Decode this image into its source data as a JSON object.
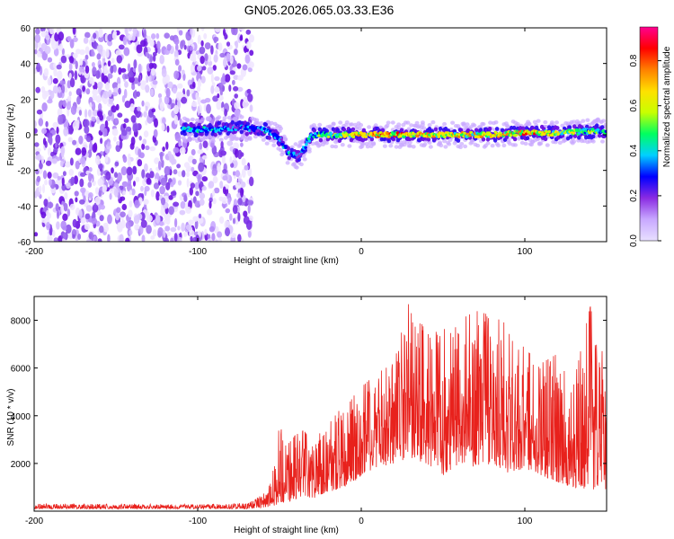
{
  "figure": {
    "title": "GN05.2026.065.03.33.E36"
  },
  "chart_data": [
    {
      "type": "heatmap",
      "title": "",
      "xlabel": "Height of straight line (km)",
      "ylabel": "Frequency (Hz)",
      "xlim": [
        -200,
        150
      ],
      "ylim": [
        -60,
        60
      ],
      "x_ticks": [
        -200,
        -100,
        0,
        100
      ],
      "y_ticks": [
        -60,
        -40,
        -20,
        0,
        20,
        40,
        60
      ],
      "x_tick_labels": [
        "-200",
        "-100",
        "0",
        "100"
      ],
      "y_tick_labels": [
        "-60",
        "-40",
        "-20",
        "0",
        "20",
        "40",
        "60"
      ],
      "colorbar": {
        "label": "Normalized spectral amplitude",
        "range": [
          0,
          0.95
        ],
        "ticks": [
          0,
          0.2,
          0.4,
          0.6,
          0.8
        ],
        "tick_labels": [
          "0.0",
          "0.2",
          "0.4",
          "0.6",
          "0.8"
        ],
        "colors": [
          "#e8e0ff",
          "#c8a8ff",
          "#8a2be2",
          "#0000ff",
          "#00d0ff",
          "#00ff60",
          "#c8ff00",
          "#ffe000",
          "#ff8000",
          "#ff0000",
          "#ff0090"
        ]
      },
      "noise_region": {
        "x": [
          -200,
          -67
        ],
        "freq": [
          -60,
          60
        ],
        "amplitude_range": [
          0,
          0.25
        ]
      },
      "signal_ridge": [
        {
          "x": -110,
          "freq": 3,
          "amp": 0.45
        },
        {
          "x": -90,
          "freq": 3,
          "amp": 0.4
        },
        {
          "x": -75,
          "freq": 4,
          "amp": 0.35
        },
        {
          "x": -60,
          "freq": 3,
          "amp": 0.4
        },
        {
          "x": -50,
          "freq": -2,
          "amp": 0.4
        },
        {
          "x": -45,
          "freq": -10,
          "amp": 0.4
        },
        {
          "x": -38,
          "freq": -12,
          "amp": 0.35
        },
        {
          "x": -30,
          "freq": 0,
          "amp": 0.45
        },
        {
          "x": -20,
          "freq": 0,
          "amp": 0.55
        },
        {
          "x": -10,
          "freq": 0,
          "amp": 0.6
        },
        {
          "x": 0,
          "freq": 0,
          "amp": 0.75
        },
        {
          "x": 20,
          "freq": 0,
          "amp": 0.8
        },
        {
          "x": 40,
          "freq": 0,
          "amp": 0.7
        },
        {
          "x": 60,
          "freq": 0,
          "amp": 0.75
        },
        {
          "x": 80,
          "freq": 0,
          "amp": 0.7
        },
        {
          "x": 100,
          "freq": 1,
          "amp": 0.8
        },
        {
          "x": 120,
          "freq": 1,
          "amp": 0.65
        },
        {
          "x": 140,
          "freq": 2,
          "amp": 0.55
        },
        {
          "x": 150,
          "freq": 2,
          "amp": 0.5
        }
      ]
    },
    {
      "type": "line",
      "title": "",
      "xlabel": "Height of straight line (km)",
      "ylabel": "SNR (10 * v/v)",
      "xlim": [
        -200,
        150
      ],
      "ylim": [
        0,
        9000
      ],
      "x_ticks": [
        -200,
        -100,
        0,
        100
      ],
      "y_ticks": [
        2000,
        4000,
        6000,
        8000
      ],
      "x_tick_labels": [
        "-200",
        "-100",
        "0",
        "100"
      ],
      "y_tick_labels": [
        "2000",
        "4000",
        "6000",
        "8000"
      ],
      "series": [
        {
          "name": "SNR",
          "color": "#e8211c",
          "envelope": {
            "x": [
              -200,
              -150,
              -100,
              -70,
              -60,
              -55,
              -50,
              -45,
              -40,
              -35,
              -30,
              -25,
              -20,
              -15,
              -10,
              -5,
              0,
              10,
              20,
              30,
              40,
              50,
              60,
              70,
              80,
              90,
              100,
              110,
              120,
              130,
              140,
              150
            ],
            "low": [
              100,
              100,
              100,
              100,
              150,
              200,
              300,
              400,
              500,
              600,
              500,
              700,
              800,
              900,
              1000,
              1200,
              1500,
              1800,
              2000,
              2200,
              2000,
              1500,
              2000,
              1800,
              2000,
              1600,
              1800,
              1500,
              1200,
              1000,
              900,
              800
            ],
            "high": [
              300,
              300,
              280,
              320,
              700,
              1200,
              3600,
              2800,
              3200,
              3400,
              2800,
              3300,
              3600,
              4200,
              4200,
              4800,
              5200,
              5800,
              6200,
              9000,
              7400,
              7600,
              8000,
              8400,
              8200,
              7800,
              6800,
              6200,
              6600,
              5400,
              8600,
              6000
            ]
          }
        }
      ]
    }
  ]
}
